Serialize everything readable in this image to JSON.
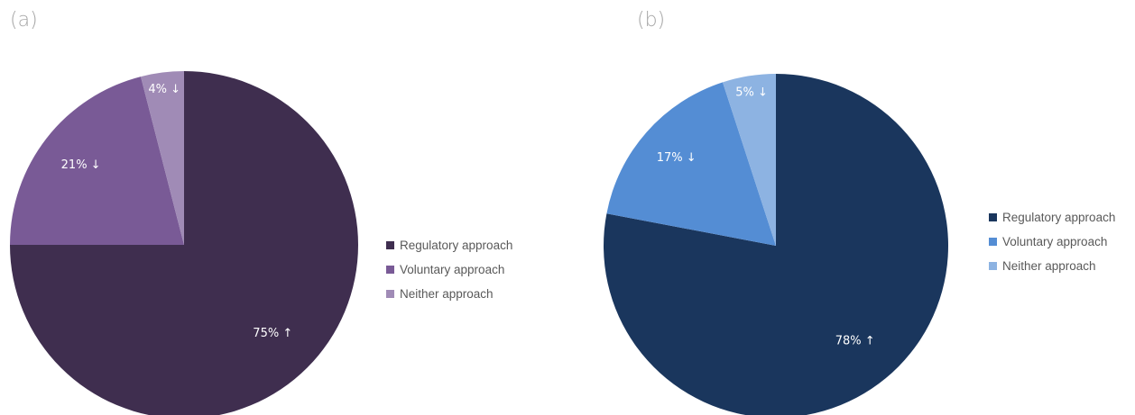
{
  "panels": [
    {
      "label": "(a)",
      "chart_data": {
        "type": "pie",
        "categories": [
          "Regulatory approach",
          "Voluntary approach",
          "Neither approach"
        ],
        "values": [
          75,
          21,
          4
        ],
        "data_labels": [
          "75% ↑",
          "21% ↓",
          "4% ↓"
        ],
        "colors": [
          "#3f2e4f",
          "#795a96",
          "#a08bb6"
        ],
        "legend_position": "right"
      }
    },
    {
      "label": "(b)",
      "chart_data": {
        "type": "pie",
        "categories": [
          "Regulatory approach",
          "Voluntary approach",
          "Neither approach"
        ],
        "values": [
          78,
          17,
          5
        ],
        "data_labels": [
          "78% ↑",
          "17% ↓",
          "5% ↓"
        ],
        "colors": [
          "#1a365d",
          "#548dd4",
          "#8db3e2"
        ],
        "legend_position": "right"
      }
    }
  ]
}
